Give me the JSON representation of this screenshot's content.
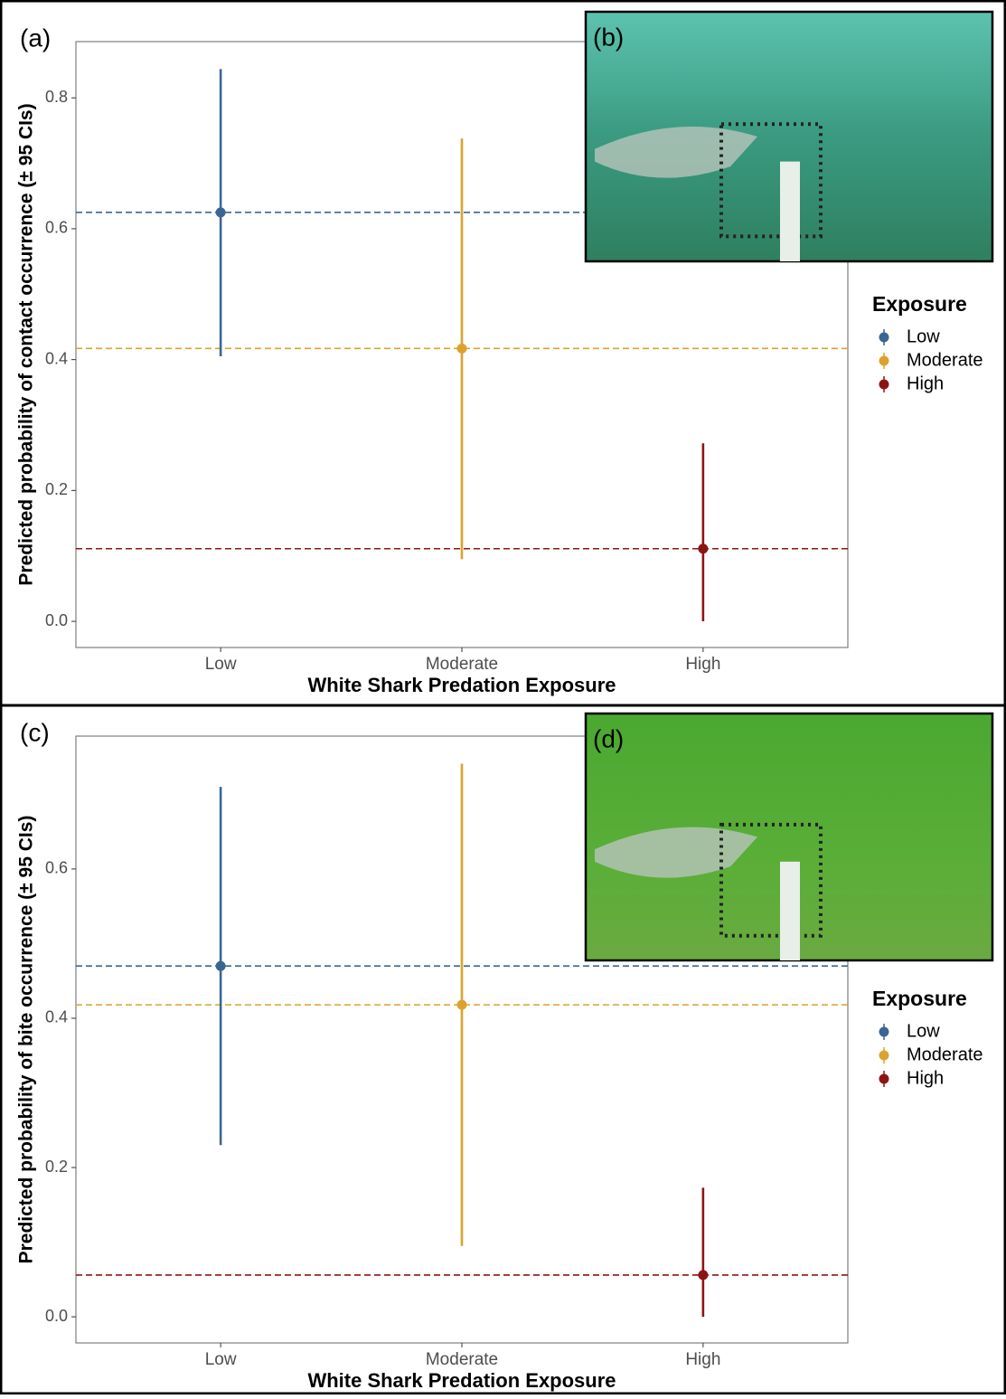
{
  "chart_data": [
    {
      "type": "pointrange",
      "panel_label": "(a)",
      "inset_label": "(b)",
      "ylabel": "Predicted probability of contact occurrence (± 95 CIs)",
      "xlabel": "White Shark Predation Exposure",
      "categories": [
        "Low",
        "Moderate",
        "High"
      ],
      "values": [
        0.625,
        0.417,
        0.111
      ],
      "lower": [
        0.405,
        0.095,
        0
      ],
      "upper": [
        0.844,
        0.738,
        0.272
      ],
      "colors": [
        "#3a6694",
        "#dca22e",
        "#8e1414"
      ],
      "ylim": [
        -0.04,
        0.886
      ],
      "yticks": [
        {
          "value": 0,
          "label": "0.0"
        },
        0.2,
        0.4,
        0.6,
        0.8
      ],
      "grid": false,
      "reference_lines": true,
      "legend_title": "Exposure"
    },
    {
      "type": "pointrange",
      "panel_label": "(c)",
      "inset_label": "(d)",
      "ylabel": "Predicted probability of bite occurrence (± 95 CIs)",
      "xlabel": "White Shark Predation Exposure",
      "categories": [
        "Low",
        "Moderate",
        "High"
      ],
      "values": [
        0.47,
        0.418,
        0.056
      ],
      "lower": [
        0.23,
        0.095,
        0
      ],
      "upper": [
        0.71,
        0.741,
        0.173
      ],
      "colors": [
        "#3a6694",
        "#dca22e",
        "#8e1414"
      ],
      "ylim": [
        -0.035,
        0.778
      ],
      "yticks": [
        {
          "value": 0,
          "label": "0.0"
        },
        0.2,
        0.4,
        0.6
      ],
      "grid": false,
      "reference_lines": true,
      "legend_title": "Exposure"
    }
  ]
}
